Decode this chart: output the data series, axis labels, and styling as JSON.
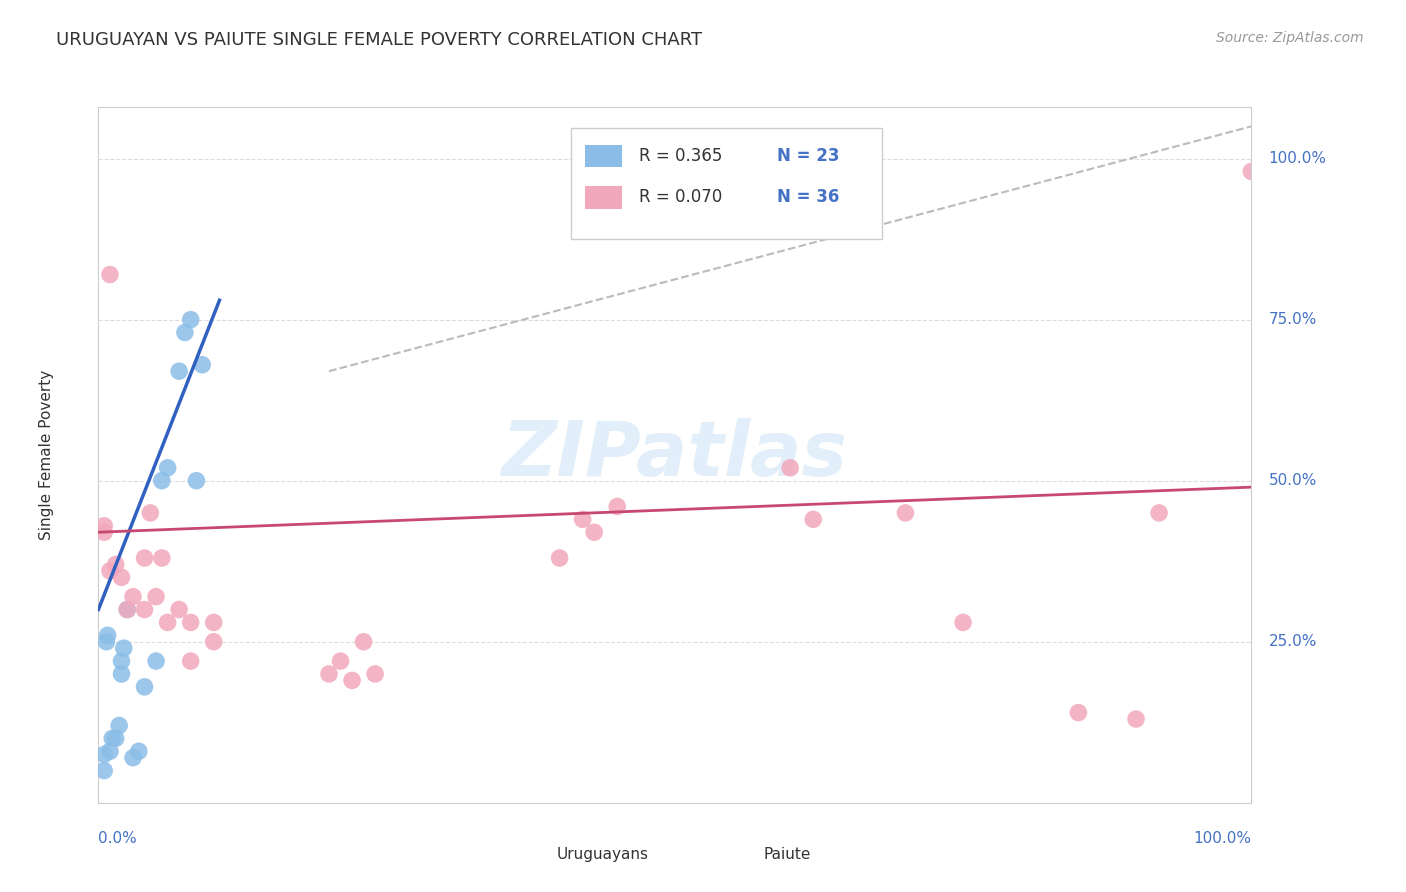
{
  "title": "URUGUAYAN VS PAIUTE SINGLE FEMALE POVERTY CORRELATION CHART",
  "source": "Source: ZipAtlas.com",
  "ylabel": "Single Female Poverty",
  "legend_blue_r": "R = 0.365",
  "legend_blue_n": "N = 23",
  "legend_pink_r": "R = 0.070",
  "legend_pink_n": "N = 36",
  "watermark": "ZIPatlas",
  "blue_scatter_color": "#8BBDE8",
  "pink_scatter_color": "#F2A8BC",
  "blue_line_color": "#3060C0",
  "pink_line_color": "#C84870",
  "diagonal_color": "#BBBBBB",
  "grid_color": "#DDDDDD",
  "uruguayan_x": [
    0.5,
    0.5,
    0.7,
    0.8,
    1.0,
    1.2,
    1.5,
    1.8,
    2.0,
    2.0,
    2.2,
    2.5,
    3.0,
    3.5,
    4.0,
    5.0,
    5.5,
    6.0,
    7.0,
    7.5,
    8.0,
    8.5,
    9.0
  ],
  "uruguayan_y": [
    5.0,
    7.5,
    25.0,
    26.0,
    8.0,
    10.0,
    10.0,
    12.0,
    20.0,
    22.0,
    24.0,
    30.0,
    7.0,
    8.0,
    18.0,
    22.0,
    50.0,
    52.0,
    67.0,
    73.0,
    75.0,
    50.0,
    68.0
  ],
  "paiute_x": [
    0.5,
    0.5,
    1.0,
    1.0,
    1.5,
    2.0,
    2.5,
    3.0,
    4.0,
    4.0,
    4.5,
    5.0,
    5.5,
    6.0,
    7.0,
    8.0,
    8.0,
    10.0,
    10.0,
    20.0,
    21.0,
    22.0,
    23.0,
    24.0,
    40.0,
    42.0,
    43.0,
    45.0,
    60.0,
    62.0,
    70.0,
    75.0,
    85.0,
    90.0,
    92.0,
    100.0
  ],
  "paiute_y": [
    42.0,
    43.0,
    36.0,
    82.0,
    37.0,
    35.0,
    30.0,
    32.0,
    30.0,
    38.0,
    45.0,
    32.0,
    38.0,
    28.0,
    30.0,
    22.0,
    28.0,
    25.0,
    28.0,
    20.0,
    22.0,
    19.0,
    25.0,
    20.0,
    38.0,
    44.0,
    42.0,
    46.0,
    52.0,
    44.0,
    45.0,
    28.0,
    14.0,
    13.0,
    45.0,
    98.0
  ],
  "xlim": [
    0,
    100
  ],
  "ylim": [
    0,
    108
  ],
  "blue_line_x": [
    0.0,
    10.5
  ],
  "blue_line_y": [
    30.0,
    78.0
  ],
  "pink_line_x": [
    0.0,
    100.0
  ],
  "pink_line_y": [
    42.0,
    49.0
  ],
  "diag_line_x": [
    20.0,
    100.0
  ],
  "diag_line_y": [
    67.0,
    105.0
  ]
}
